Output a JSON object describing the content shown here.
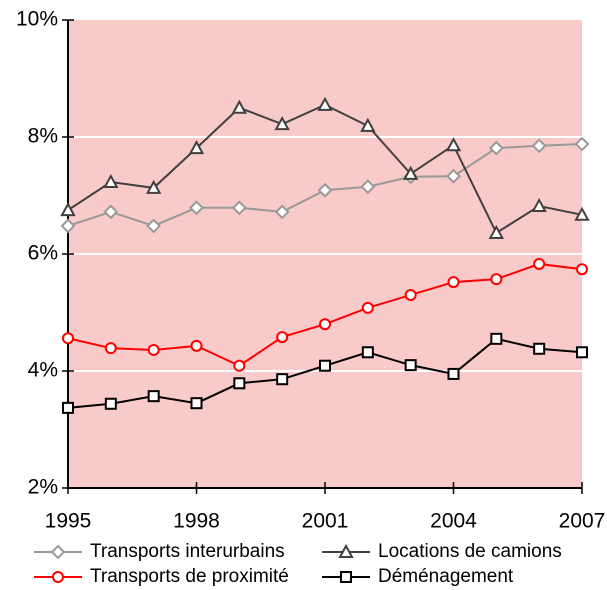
{
  "chart_data": {
    "type": "line",
    "x": [
      1995,
      1996,
      1997,
      1998,
      1999,
      2000,
      2001,
      2002,
      2003,
      2004,
      2005,
      2006,
      2007
    ],
    "xlim": [
      1995,
      2007
    ],
    "xticks": [
      1995,
      1998,
      2001,
      2004,
      2007
    ],
    "ylim": [
      2,
      10
    ],
    "yticks": [
      {
        "value": 2,
        "label": "2%"
      },
      {
        "value": 4,
        "label": "4%"
      },
      {
        "value": 6,
        "label": "6%"
      },
      {
        "value": 8,
        "label": "8%"
      },
      {
        "value": 10,
        "label": "10%"
      }
    ],
    "grid": true,
    "background": "#f9caca",
    "legend": "bottom",
    "series": [
      {
        "name": "Transports interurbains",
        "color": "#999999",
        "marker": "diamond",
        "values": [
          6.48,
          6.72,
          6.48,
          6.79,
          6.79,
          6.72,
          7.09,
          7.15,
          7.32,
          7.33,
          7.81,
          7.85,
          7.88
        ]
      },
      {
        "name": "Locations de camions",
        "color": "#404040",
        "marker": "triangle",
        "values": [
          6.75,
          7.23,
          7.13,
          7.81,
          8.5,
          8.22,
          8.55,
          8.19,
          7.37,
          7.86,
          6.36,
          6.82,
          6.67
        ]
      },
      {
        "name": "Transports de proximité",
        "color": "#ff0000",
        "marker": "circle",
        "values": [
          4.56,
          4.39,
          4.36,
          4.43,
          4.09,
          4.58,
          4.8,
          5.08,
          5.3,
          5.52,
          5.57,
          5.83,
          5.74
        ]
      },
      {
        "name": "Déménagement",
        "color": "#000000",
        "marker": "square",
        "values": [
          3.37,
          3.44,
          3.57,
          3.45,
          3.79,
          3.86,
          4.09,
          4.32,
          4.1,
          3.95,
          4.55,
          4.38,
          4.32
        ]
      }
    ]
  }
}
